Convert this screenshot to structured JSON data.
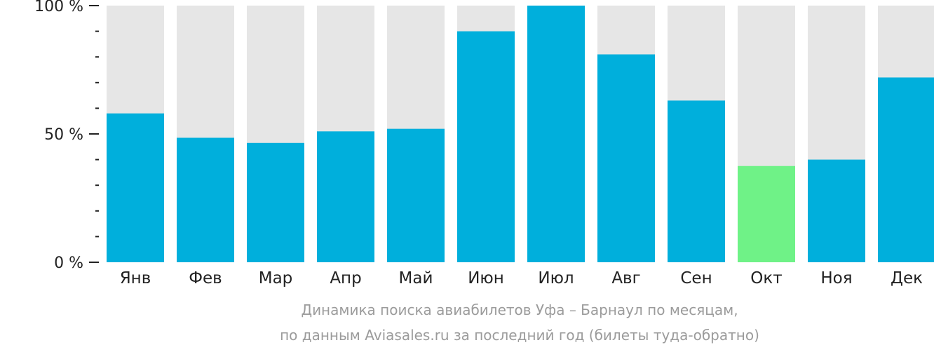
{
  "chart_data": {
    "type": "bar",
    "categories": [
      "Янв",
      "Фев",
      "Мар",
      "Апр",
      "Май",
      "Июн",
      "Июл",
      "Авг",
      "Сен",
      "Окт",
      "Ноя",
      "Дек"
    ],
    "values": [
      58,
      48.5,
      46.5,
      51,
      52,
      90,
      100,
      81,
      63,
      37.5,
      40,
      72
    ],
    "ylim": [
      0,
      100
    ],
    "y_ticks": [
      "0 %",
      "50 %",
      "100 %"
    ],
    "y_tick_values": [
      0,
      50,
      100
    ],
    "minor_tick_step": 10,
    "highlight_index": 9,
    "colors": {
      "bar": "#00afdc",
      "highlight": "#6ff287",
      "background_bar": "#e6e6e6",
      "axis": "#222222",
      "tick_label": "#222222"
    },
    "caption_line1": "Динамика поиска авиабилетов Уфа – Барнаул по месяцам,",
    "caption_line2": "по данным Aviasales.ru за последний год (билеты туда-обратно)",
    "grid": false,
    "legend": "none"
  }
}
